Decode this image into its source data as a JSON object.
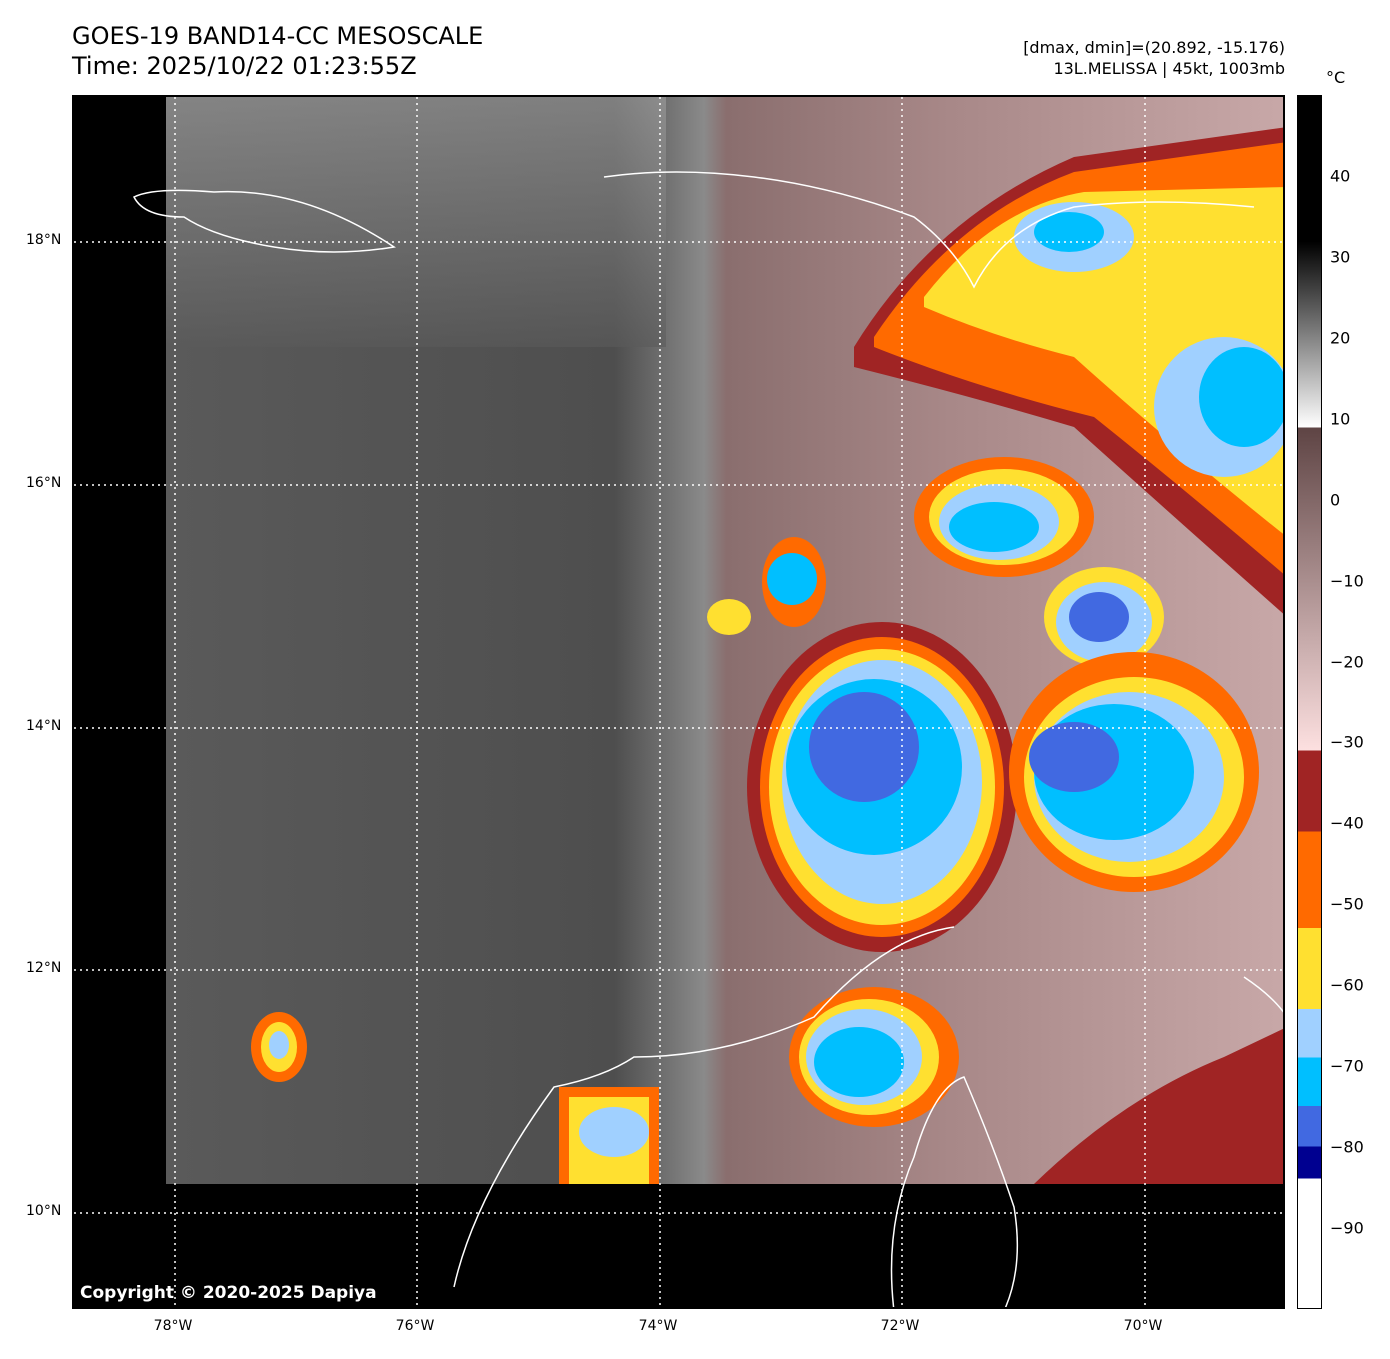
{
  "header": {
    "title_line1": "GOES-19 BAND14-CC MESOSCALE",
    "title_line2": "Time: 2025/10/22 01:23:55Z",
    "range_text": "[dmax, dmin]=(20.892, -15.176)",
    "storm_text": "13L.MELISSA | 45kt, 1003mb"
  },
  "map": {
    "copyright": "Copyright © 2020-2025 Dapiya",
    "lat_labels": [
      "18°N",
      "16°N",
      "14°N",
      "12°N",
      "10°N"
    ],
    "lon_labels": [
      "78°W",
      "76°W",
      "74°W",
      "72°W",
      "70°W"
    ]
  },
  "colorbar": {
    "unit": "°C",
    "ticks": [
      "40",
      "30",
      "20",
      "10",
      "0",
      "−10",
      "−20",
      "−30",
      "−40",
      "−50",
      "−60",
      "−70",
      "−80",
      "−90"
    ],
    "tick_values": [
      40,
      30,
      20,
      10,
      0,
      -10,
      -20,
      -30,
      -40,
      -50,
      -60,
      -70,
      -80,
      -90
    ],
    "range": [
      -100,
      50
    ],
    "bands": [
      {
        "from": -31,
        "to": -41,
        "color": "#a02424"
      },
      {
        "from": -41,
        "to": -53,
        "color": "#ff6a00"
      },
      {
        "from": -53,
        "to": -63,
        "color": "#ffe030"
      },
      {
        "from": -63,
        "to": -69,
        "color": "#a0d0ff"
      },
      {
        "from": -69,
        "to": -75,
        "color": "#00bfff"
      },
      {
        "from": -75,
        "to": -80,
        "color": "#4169e1"
      },
      {
        "from": -80,
        "to": -84,
        "color": "#000090"
      }
    ]
  }
}
